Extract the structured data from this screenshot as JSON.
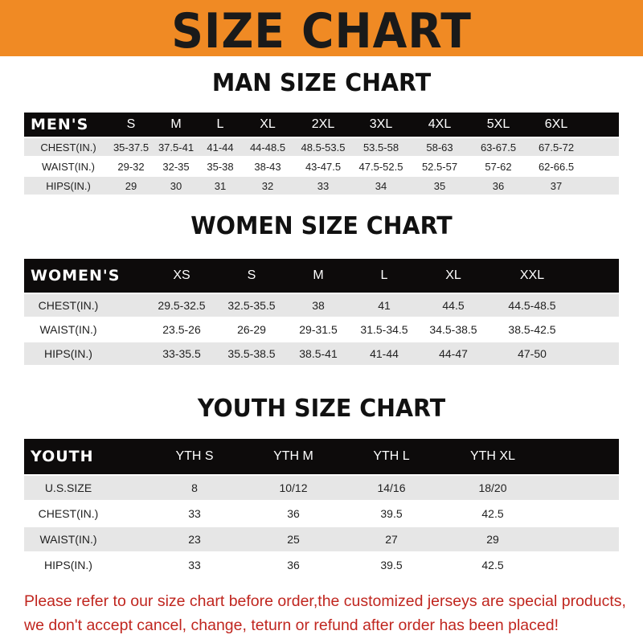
{
  "banner_title": "SIZE CHART",
  "colors": {
    "banner": "#f08a24",
    "header_row": "#0d0b0b",
    "alt_row": "#e6e6e6",
    "notice": "#c0261f"
  },
  "men": {
    "title": "MAN SIZE CHART",
    "header": [
      "MEN'S",
      "S",
      "M",
      "L",
      "XL",
      "2XL",
      "3XL",
      "4XL",
      "5XL",
      "6XL"
    ],
    "rows": [
      [
        "CHEST(IN.)",
        "35-37.5",
        "37.5-41",
        "41-44",
        "44-48.5",
        "48.5-53.5",
        "53.5-58",
        "58-63",
        "63-67.5",
        "67.5-72"
      ],
      [
        "WAIST(IN.)",
        "29-32",
        "32-35",
        "35-38",
        "38-43",
        "43-47.5",
        "47.5-52.5",
        "52.5-57",
        "57-62",
        "62-66.5"
      ],
      [
        "HIPS(IN.)",
        "29",
        "30",
        "31",
        "32",
        "33",
        "34",
        "35",
        "36",
        "37"
      ]
    ]
  },
  "women": {
    "title": "WOMEN SIZE CHART",
    "header": [
      "WOMEN'S",
      "XS",
      "S",
      "M",
      "L",
      "XL",
      "XXL"
    ],
    "rows": [
      [
        "CHEST(IN.)",
        "29.5-32.5",
        "32.5-35.5",
        "38",
        "41",
        "44.5",
        "44.5-48.5"
      ],
      [
        "WAIST(IN.)",
        "23.5-26",
        "26-29",
        "29-31.5",
        "31.5-34.5",
        "34.5-38.5",
        "38.5-42.5"
      ],
      [
        "HIPS(IN.)",
        "33-35.5",
        "35.5-38.5",
        "38.5-41",
        "41-44",
        "44-47",
        "47-50"
      ]
    ]
  },
  "youth": {
    "title": "YOUTH SIZE CHART",
    "header": [
      "YOUTH",
      "YTH S",
      "YTH M",
      "YTH L",
      "YTH XL"
    ],
    "rows": [
      [
        "U.S.SIZE",
        "8",
        "10/12",
        "14/16",
        "18/20"
      ],
      [
        "CHEST(IN.)",
        "33",
        "36",
        "39.5",
        "42.5"
      ],
      [
        "WAIST(IN.)",
        "23",
        "25",
        "27",
        "29"
      ],
      [
        "HIPS(IN.)",
        "33",
        "36",
        "39.5",
        "42.5"
      ]
    ]
  },
  "notice": {
    "line1": "Please refer to our size chart before order,the customized jerseys are special products,",
    "line2": "we don't accept cancel, change, teturn or refund after order has been placed!"
  }
}
